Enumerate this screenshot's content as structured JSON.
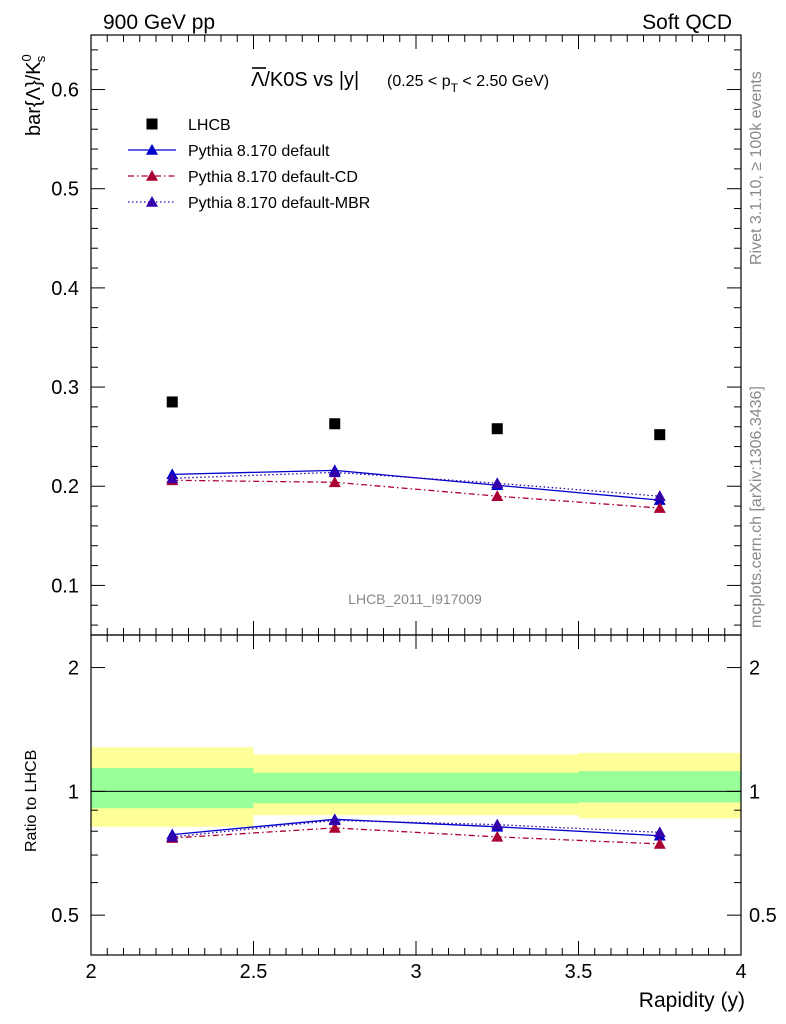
{
  "header": {
    "left_label": "900 GeV pp",
    "right_label": "Soft QCD"
  },
  "side_labels": {
    "rivet": "Rivet 3.1.10, ≥ 100k events",
    "mcplots": "mcplots.cern.ch [arXiv:1306.3436]"
  },
  "watermark": "LHCB_2011_I917009",
  "colors": {
    "lhcb": "#000000",
    "default": "#0000cc",
    "default_cd": "#aa0033",
    "default_mbr": "#3300aa",
    "band_inner": "#99ff99",
    "band_outer": "#ffff99"
  },
  "chart_data": [
    {
      "type": "scatter",
      "title_main": "Λ/K0S vs |y|",
      "title_overline": "Λ",
      "title_rest": "/K0S vs |y|",
      "title_sub": "(0.25 < p",
      "title_sub_index": "T",
      "title_sub_end": " < 2.50 GeV)",
      "ylabel": "bar{Λ}/K",
      "ylabel_sup": "0",
      "ylabel_sub": "s",
      "xlim": [
        2,
        4
      ],
      "ylim": [
        0.05,
        0.655
      ],
      "yticks": [
        0.1,
        0.2,
        0.3,
        0.4,
        0.5,
        0.6
      ],
      "ytick_labels": [
        "0.1",
        "0.2",
        "0.3",
        "0.4",
        "0.5",
        "0.6"
      ],
      "legend_position": "top-left",
      "x": [
        2.25,
        2.75,
        3.25,
        3.75
      ],
      "xbins": [
        [
          2.0,
          2.5
        ],
        [
          2.5,
          3.0
        ],
        [
          3.0,
          3.5
        ],
        [
          3.5,
          4.0
        ]
      ],
      "series": [
        {
          "name": "LHCB",
          "key": "lhcb",
          "style": "marker",
          "values": [
            0.285,
            0.263,
            0.258,
            0.252
          ]
        },
        {
          "name": "Pythia 8.170 default",
          "key": "default",
          "style": "solid",
          "values": [
            0.212,
            0.216,
            0.201,
            0.186
          ],
          "err": [
            0.005,
            0.005,
            0.005,
            0.005
          ]
        },
        {
          "name": "Pythia 8.170 default-CD",
          "key": "default_cd",
          "style": "dashdot",
          "values": [
            0.206,
            0.204,
            0.19,
            0.178
          ],
          "err": [
            0.004,
            0.004,
            0.004,
            0.004
          ]
        },
        {
          "name": "Pythia 8.170 default-MBR",
          "key": "default_mbr",
          "style": "dotted",
          "values": [
            0.208,
            0.214,
            0.203,
            0.19
          ],
          "err": [
            0.005,
            0.005,
            0.005,
            0.005
          ]
        }
      ]
    },
    {
      "type": "line",
      "ylabel": "Ratio to LHCB",
      "xlabel": "Rapidity (y)",
      "xlim": [
        2,
        4
      ],
      "ylim": [
        0.4,
        2.4
      ],
      "yscale": "log",
      "yticks": [
        0.5,
        1,
        2
      ],
      "ytick_labels": [
        "0.5",
        "1",
        "2"
      ],
      "xticks": [
        2,
        2.5,
        3,
        3.5,
        4
      ],
      "xtick_labels": [
        "2",
        "2.5",
        "3",
        "3.5",
        "4"
      ],
      "x": [
        2.25,
        2.75,
        3.25,
        3.75
      ],
      "bands": {
        "bins": [
          [
            2.0,
            2.5
          ],
          [
            2.5,
            3.0
          ],
          [
            3.0,
            3.5
          ],
          [
            3.5,
            4.0
          ]
        ],
        "inner": [
          [
            0.91,
            1.14
          ],
          [
            0.935,
            1.11
          ],
          [
            0.935,
            1.11
          ],
          [
            0.94,
            1.12
          ]
        ],
        "outer": [
          [
            0.82,
            1.28
          ],
          [
            0.875,
            1.23
          ],
          [
            0.875,
            1.23
          ],
          [
            0.86,
            1.24
          ]
        ]
      },
      "series": [
        {
          "name": "Pythia 8.170 default",
          "key": "default",
          "style": "solid",
          "values": [
            0.785,
            0.855,
            0.82,
            0.78
          ],
          "err": [
            0.015,
            0.015,
            0.015,
            0.015
          ]
        },
        {
          "name": "Pythia 8.170 default-CD",
          "key": "default_cd",
          "style": "dashdot",
          "values": [
            0.77,
            0.815,
            0.775,
            0.745
          ],
          "err": [
            0.012,
            0.012,
            0.012,
            0.012
          ]
        },
        {
          "name": "Pythia 8.170 default-MBR",
          "key": "default_mbr",
          "style": "dotted",
          "values": [
            0.775,
            0.85,
            0.83,
            0.795
          ],
          "err": [
            0.015,
            0.015,
            0.015,
            0.015
          ]
        }
      ]
    }
  ]
}
